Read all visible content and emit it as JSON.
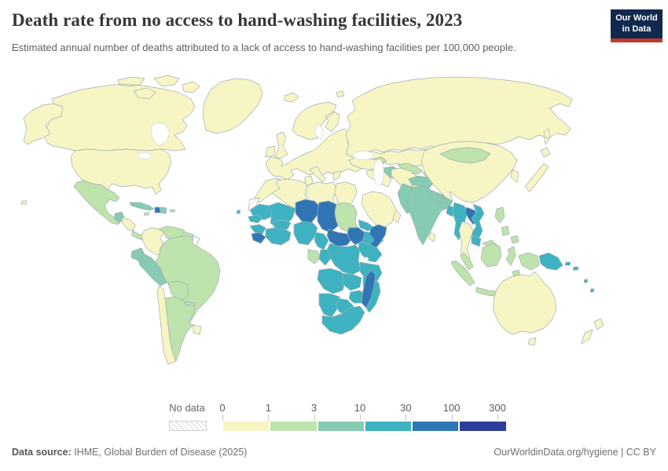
{
  "header": {
    "title": "Death rate from no access to hand-washing facilities, 2023",
    "subtitle": "Estimated annual number of deaths attributed to a lack of access to hand-washing facilities per 100,000 people.",
    "logo": {
      "line1": "Our World",
      "line2": "in Data",
      "bg_color": "#12294e",
      "accent_color": "#c0392b"
    }
  },
  "legend": {
    "no_data_label": "No data"
  },
  "footer": {
    "source_label": "Data source:",
    "source_text": " IHME, Global Burden of Disease (2025)",
    "right_text": "OurWorldinData.org/hygiene | CC BY"
  },
  "chart_data": {
    "type": "choropleth",
    "title": "Death rate from no access to hand-washing facilities",
    "year": "2023",
    "unit": "estimated annual deaths per 100,000 people",
    "scale": {
      "tick_labels": [
        "0",
        "1",
        "3",
        "10",
        "30",
        "100",
        "300"
      ],
      "bin_ranges": [
        "0-1",
        "1-3",
        "3-10",
        "10-30",
        "30-100",
        "100-300"
      ],
      "bin_colors": [
        "#f7f5c3",
        "#bee3ac",
        "#86cbb2",
        "#3eb2c0",
        "#3076b5",
        "#2c3d9c"
      ],
      "no_data_style": "gray diagonal hatch"
    },
    "regions": [
      {
        "id": "canada",
        "bin": 0
      },
      {
        "id": "alaska",
        "bin": 0
      },
      {
        "id": "usa",
        "bin": 0
      },
      {
        "id": "greenland",
        "bin": 0
      },
      {
        "id": "hawaii",
        "bin": 0
      },
      {
        "id": "mexico",
        "bin": 1
      },
      {
        "id": "guatemala",
        "bin": 2
      },
      {
        "id": "honduras-nicaragua",
        "bin": 0
      },
      {
        "id": "costa-rica-panama",
        "bin": 1
      },
      {
        "id": "cuba",
        "bin": 2
      },
      {
        "id": "jamaica",
        "bin": 1
      },
      {
        "id": "haiti",
        "bin": 4
      },
      {
        "id": "dominican-republic",
        "bin": 2
      },
      {
        "id": "puerto-rico",
        "bin": 1
      },
      {
        "id": "colombia",
        "bin": 0
      },
      {
        "id": "venezuela",
        "bin": 1
      },
      {
        "id": "guyana-suriname",
        "bin": 1
      },
      {
        "id": "french-guiana",
        "bin": null
      },
      {
        "id": "ecuador",
        "bin": 2
      },
      {
        "id": "peru",
        "bin": 2
      },
      {
        "id": "brazil",
        "bin": 1
      },
      {
        "id": "bolivia",
        "bin": 1
      },
      {
        "id": "paraguay",
        "bin": 1
      },
      {
        "id": "chile",
        "bin": 0
      },
      {
        "id": "argentina",
        "bin": 1
      },
      {
        "id": "uruguay",
        "bin": 0
      },
      {
        "id": "iceland",
        "bin": 0
      },
      {
        "id": "ireland",
        "bin": 0
      },
      {
        "id": "uk",
        "bin": 0
      },
      {
        "id": "scandinavia",
        "bin": 0
      },
      {
        "id": "europe-mainland",
        "bin": 0
      },
      {
        "id": "italy",
        "bin": 0
      },
      {
        "id": "greece",
        "bin": 0
      },
      {
        "id": "svalbard",
        "bin": 0
      },
      {
        "id": "russia",
        "bin": 0
      },
      {
        "id": "kazakhstan",
        "bin": 0
      },
      {
        "id": "caucasus",
        "bin": 1
      },
      {
        "id": "uzbekistan",
        "bin": 1
      },
      {
        "id": "turkmenistan",
        "bin": 2
      },
      {
        "id": "kyrgyz-tajik",
        "bin": 1
      },
      {
        "id": "turkey",
        "bin": 0
      },
      {
        "id": "syria-iraq",
        "bin": 0
      },
      {
        "id": "iran",
        "bin": 0
      },
      {
        "id": "saudi-arabia",
        "bin": 0
      },
      {
        "id": "yemen",
        "bin": 1
      },
      {
        "id": "oman",
        "bin": 0
      },
      {
        "id": "morocco",
        "bin": 0
      },
      {
        "id": "algeria",
        "bin": 0
      },
      {
        "id": "tunisia",
        "bin": 0
      },
      {
        "id": "libya",
        "bin": 0
      },
      {
        "id": "egypt",
        "bin": 0
      },
      {
        "id": "western-sahara",
        "bin": null
      },
      {
        "id": "mauritania",
        "bin": 3
      },
      {
        "id": "mali",
        "bin": 3
      },
      {
        "id": "niger",
        "bin": 4
      },
      {
        "id": "chad",
        "bin": 4
      },
      {
        "id": "sudan",
        "bin": 1
      },
      {
        "id": "eritrea-djibouti",
        "bin": 3
      },
      {
        "id": "ethiopia",
        "bin": 3
      },
      {
        "id": "somalia",
        "bin": 4
      },
      {
        "id": "senegal-gambia",
        "bin": 3
      },
      {
        "id": "guinea",
        "bin": 3
      },
      {
        "id": "sierra-leone-liberia",
        "bin": 4
      },
      {
        "id": "cote-divoire-ghana",
        "bin": 3
      },
      {
        "id": "burkina-faso",
        "bin": 3
      },
      {
        "id": "nigeria",
        "bin": 3
      },
      {
        "id": "cameroon",
        "bin": 3
      },
      {
        "id": "central-african-republic",
        "bin": 4
      },
      {
        "id": "south-sudan",
        "bin": 4
      },
      {
        "id": "gabon-eq-guinea",
        "bin": 1
      },
      {
        "id": "congo",
        "bin": 3
      },
      {
        "id": "drc",
        "bin": 3
      },
      {
        "id": "uganda-kenya",
        "bin": 3
      },
      {
        "id": "tanzania",
        "bin": 3
      },
      {
        "id": "angola",
        "bin": 3
      },
      {
        "id": "zambia",
        "bin": 3
      },
      {
        "id": "mozambique-malawi",
        "bin": 3
      },
      {
        "id": "zimbabwe",
        "bin": 3
      },
      {
        "id": "namibia",
        "bin": 3
      },
      {
        "id": "botswana",
        "bin": 3
      },
      {
        "id": "south-africa",
        "bin": 3
      },
      {
        "id": "madagascar",
        "bin": 4
      },
      {
        "id": "cape-verde",
        "bin": 3
      },
      {
        "id": "afghanistan",
        "bin": 2
      },
      {
        "id": "pakistan",
        "bin": 2
      },
      {
        "id": "india",
        "bin": 2
      },
      {
        "id": "nepal",
        "bin": 2
      },
      {
        "id": "bangladesh",
        "bin": 3
      },
      {
        "id": "sri-lanka",
        "bin": 0
      },
      {
        "id": "china",
        "bin": 0
      },
      {
        "id": "mongolia",
        "bin": 1
      },
      {
        "id": "korea",
        "bin": 0
      },
      {
        "id": "japan",
        "bin": 0
      },
      {
        "id": "myanmar",
        "bin": 3
      },
      {
        "id": "laos",
        "bin": 4
      },
      {
        "id": "vietnam",
        "bin": 3
      },
      {
        "id": "thailand",
        "bin": 0
      },
      {
        "id": "cambodia",
        "bin": 3
      },
      {
        "id": "malaysia",
        "bin": 1
      },
      {
        "id": "sumatra",
        "bin": 1
      },
      {
        "id": "java",
        "bin": 1
      },
      {
        "id": "borneo",
        "bin": 1
      },
      {
        "id": "sulawesi",
        "bin": 1
      },
      {
        "id": "philippines",
        "bin": 1
      },
      {
        "id": "moluccas-west-papua",
        "bin": 1
      },
      {
        "id": "papua-new-guinea",
        "bin": 3
      },
      {
        "id": "solomon-islands",
        "bin": 3
      },
      {
        "id": "fiji-vanuatu",
        "bin": 3
      },
      {
        "id": "australia",
        "bin": 0
      },
      {
        "id": "tasmania",
        "bin": 0
      },
      {
        "id": "new-zealand",
        "bin": 0
      }
    ]
  }
}
